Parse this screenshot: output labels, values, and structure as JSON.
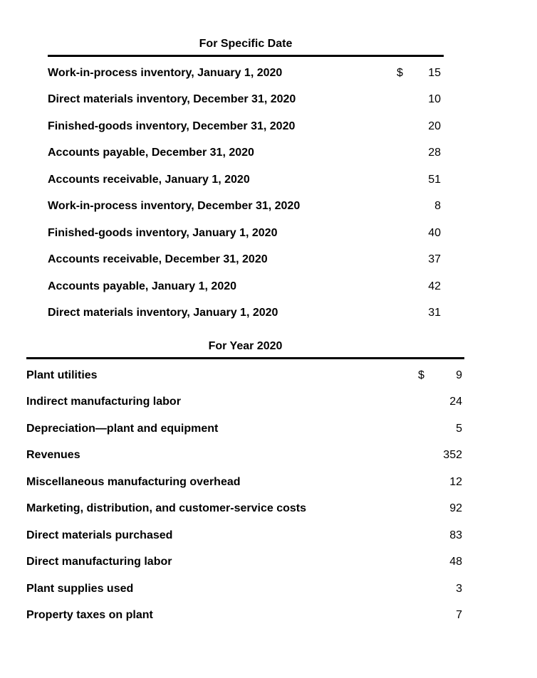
{
  "page": {
    "background_color": "#ffffff",
    "text_color": "#000000",
    "rule_color": "#000000"
  },
  "tables": [
    {
      "title": "For Specific Date",
      "rows": [
        {
          "label": "Work-in-process inventory, January 1, 2020",
          "currency": "$",
          "value": "15"
        },
        {
          "label": "Direct materials inventory, December 31, 2020",
          "currency": "",
          "value": "10"
        },
        {
          "label": "Finished-goods inventory, December 31, 2020",
          "currency": "",
          "value": "20"
        },
        {
          "label": "Accounts payable, December 31, 2020",
          "currency": "",
          "value": "28"
        },
        {
          "label": "Accounts receivable, January 1, 2020",
          "currency": "",
          "value": "51"
        },
        {
          "label": "Work-in-process inventory, December 31, 2020",
          "currency": "",
          "value": "8"
        },
        {
          "label": "Finished-goods inventory, January 1, 2020",
          "currency": "",
          "value": "40"
        },
        {
          "label": "Accounts receivable, December 31, 2020",
          "currency": "",
          "value": "37"
        },
        {
          "label": "Accounts payable, January 1, 2020",
          "currency": "",
          "value": "42"
        },
        {
          "label": "Direct materials inventory, January 1, 2020",
          "currency": "",
          "value": "31"
        }
      ]
    },
    {
      "title": "For Year 2020",
      "rows": [
        {
          "label": "Plant utilities",
          "currency": "$",
          "value": "9"
        },
        {
          "label": "Indirect manufacturing labor",
          "currency": "",
          "value": "24"
        },
        {
          "label": "Depreciation—plant and equipment",
          "currency": "",
          "value": "5"
        },
        {
          "label": "Revenues",
          "currency": "",
          "value": "352"
        },
        {
          "label": "Miscellaneous manufacturing overhead",
          "currency": "",
          "value": "12"
        },
        {
          "label": "Marketing, distribution, and customer-service costs",
          "currency": "",
          "value": "92"
        },
        {
          "label": "Direct materials purchased",
          "currency": "",
          "value": "83"
        },
        {
          "label": "Direct manufacturing labor",
          "currency": "",
          "value": "48"
        },
        {
          "label": "Plant supplies used",
          "currency": "",
          "value": "3"
        },
        {
          "label": "Property taxes on plant",
          "currency": "",
          "value": "7"
        }
      ]
    }
  ]
}
